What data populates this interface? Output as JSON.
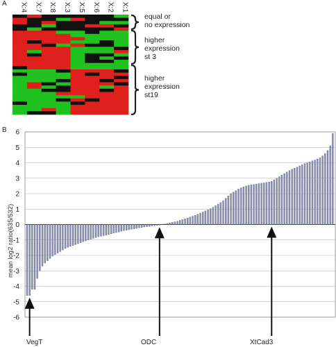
{
  "panel_a": {
    "letter": "A",
    "columns": [
      "X:4",
      "X:7",
      "X:8",
      "X:3",
      "X:5",
      "X:6",
      "X:2",
      "X:1"
    ],
    "groups": [
      {
        "label_lines": [
          "equal or",
          "no expression"
        ],
        "rows": 5
      },
      {
        "label_lines": [
          "higher",
          "expression",
          "st 3"
        ],
        "rows": 12
      },
      {
        "label_lines": [
          "higher",
          "expression",
          "st19"
        ],
        "rows": 14
      }
    ],
    "colors": {
      "up": "#e0201c",
      "down": "#1fc21f",
      "neutral": "#111111"
    }
  },
  "panel_b": {
    "letter": "B",
    "markers": [
      {
        "label": "VegT",
        "index": 1
      },
      {
        "label": "ODC",
        "index": 52
      },
      {
        "label": "XtCad3",
        "index": 96
      }
    ]
  },
  "chart_data": {
    "type": "bar",
    "title": "",
    "xlabel": "",
    "ylabel": "mean log2 ratio(635/532)",
    "ylim": [
      -6,
      6
    ],
    "yticks": [
      -6,
      -5,
      -4,
      -3,
      -2,
      -1,
      0,
      1,
      2,
      3,
      4,
      5,
      6
    ],
    "grid": true,
    "bar_color": "#8c92b4",
    "values": [
      -4.6,
      -4.6,
      -4.2,
      -4.2,
      -3.5,
      -3.0,
      -2.7,
      -2.5,
      -2.35,
      -2.2,
      -2.05,
      -1.95,
      -1.85,
      -1.75,
      -1.65,
      -1.55,
      -1.48,
      -1.42,
      -1.36,
      -1.3,
      -1.24,
      -1.18,
      -1.12,
      -1.06,
      -1.0,
      -0.95,
      -0.9,
      -0.85,
      -0.8,
      -0.76,
      -0.72,
      -0.68,
      -0.64,
      -0.6,
      -0.56,
      -0.52,
      -0.48,
      -0.44,
      -0.4,
      -0.37,
      -0.34,
      -0.31,
      -0.28,
      -0.25,
      -0.22,
      -0.19,
      -0.16,
      -0.14,
      -0.12,
      -0.1,
      -0.08,
      -0.06,
      -0.04,
      0.02,
      0.04,
      0.07,
      0.1,
      0.14,
      0.18,
      0.22,
      0.27,
      0.32,
      0.37,
      0.42,
      0.48,
      0.54,
      0.6,
      0.67,
      0.74,
      0.81,
      0.88,
      0.95,
      1.03,
      1.12,
      1.22,
      1.32,
      1.42,
      1.55,
      1.7,
      1.85,
      2.0,
      2.1,
      2.2,
      2.3,
      2.38,
      2.44,
      2.5,
      2.54,
      2.57,
      2.6,
      2.62,
      2.65,
      2.68,
      2.7,
      2.73,
      2.76,
      2.8,
      2.9,
      3.0,
      3.1,
      3.2,
      3.3,
      3.4,
      3.5,
      3.58,
      3.65,
      3.72,
      3.8,
      3.87,
      3.94,
      4.0,
      4.06,
      4.12,
      4.18,
      4.25,
      4.33,
      4.45,
      4.6,
      4.8,
      5.1,
      5.9
    ]
  }
}
